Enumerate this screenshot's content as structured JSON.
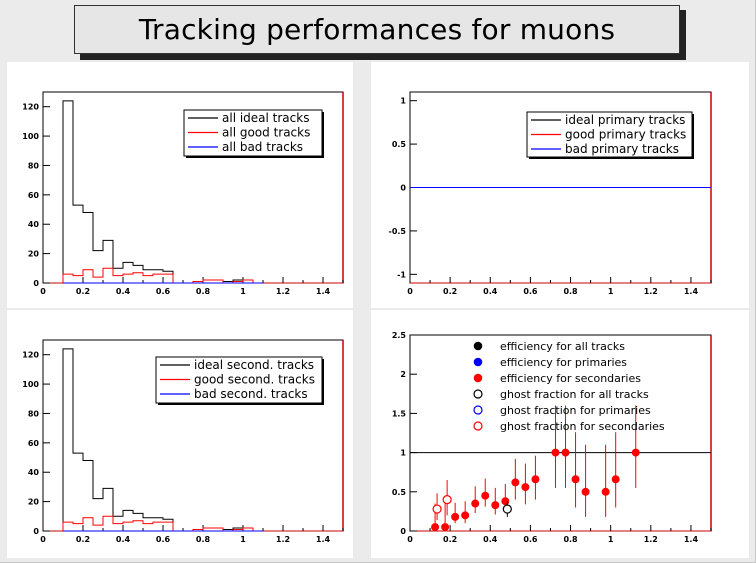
{
  "title": "Tracking performances for muons",
  "chart_data": [
    {
      "type": "histogram",
      "pad": "top-left",
      "xlim": [
        0,
        1.5
      ],
      "ylim": [
        0,
        130
      ],
      "x_ticks": [
        "0",
        "0.2",
        "0.4",
        "0.6",
        "0.8",
        "1",
        "1.2",
        "1.4"
      ],
      "x_tick_values": [
        0,
        0.2,
        0.4,
        0.6,
        0.8,
        1.0,
        1.2,
        1.4
      ],
      "y_ticks": [
        "0",
        "20",
        "40",
        "60",
        "80",
        "100",
        "120"
      ],
      "y_tick_values": [
        0,
        20,
        40,
        60,
        80,
        100,
        120
      ],
      "bin_width": 0.05,
      "bin_starts": [
        0.1,
        0.15,
        0.2,
        0.25,
        0.3,
        0.35,
        0.4,
        0.45,
        0.5,
        0.55,
        0.6,
        0.65,
        0.7,
        0.75,
        0.8,
        0.85,
        0.9,
        0.95,
        1.0,
        1.05
      ],
      "legend_placement": "top-right",
      "series": [
        {
          "name": "all ideal tracks",
          "color": "#000000",
          "values": [
            124,
            53,
            48,
            22,
            29,
            10,
            14,
            12,
            9,
            9,
            8,
            0,
            0,
            1,
            2,
            2,
            1,
            2,
            2,
            0
          ]
        },
        {
          "name": "all good tracks",
          "color": "#ff0000",
          "values": [
            6,
            5,
            9,
            4,
            10,
            5,
            6,
            7,
            5,
            6,
            6,
            0,
            0,
            1,
            2,
            2,
            0,
            1,
            2,
            0
          ]
        },
        {
          "name": "all bad tracks",
          "color": "#0000ff",
          "values": [
            0,
            0,
            0,
            0,
            0,
            0,
            0,
            0,
            0,
            0,
            0,
            0,
            0,
            0,
            0,
            0,
            0,
            0,
            0,
            0
          ]
        }
      ]
    },
    {
      "type": "line",
      "pad": "top-right",
      "xlim": [
        0,
        1.5
      ],
      "ylim": [
        -1.1,
        1.1
      ],
      "x_ticks": [
        "0",
        "0.2",
        "0.4",
        "0.6",
        "0.8",
        "1",
        "1.2",
        "1.4"
      ],
      "x_tick_values": [
        0,
        0.2,
        0.4,
        0.6,
        0.8,
        1.0,
        1.2,
        1.4
      ],
      "y_ticks": [
        "-1",
        "-0.5",
        "0",
        "0.5",
        "1"
      ],
      "y_tick_values": [
        -1,
        -0.5,
        0,
        0.5,
        1
      ],
      "legend_placement": "top-right",
      "series": [
        {
          "name": "ideal primary tracks",
          "color": "#000000",
          "x": [
            0,
            1.5
          ],
          "y": [
            0,
            0
          ]
        },
        {
          "name": "good primary tracks",
          "color": "#ff0000",
          "x": [
            0,
            1.5
          ],
          "y": [
            0,
            0
          ]
        },
        {
          "name": "bad primary tracks",
          "color": "#0000ff",
          "x": [
            0,
            1.5
          ],
          "y": [
            0,
            0
          ]
        }
      ]
    },
    {
      "type": "histogram",
      "pad": "bottom-left",
      "xlim": [
        0,
        1.5
      ],
      "ylim": [
        0,
        130
      ],
      "x_ticks": [
        "0",
        "0.2",
        "0.4",
        "0.6",
        "0.8",
        "1",
        "1.2",
        "1.4"
      ],
      "x_tick_values": [
        0,
        0.2,
        0.4,
        0.6,
        0.8,
        1.0,
        1.2,
        1.4
      ],
      "y_ticks": [
        "0",
        "20",
        "40",
        "60",
        "80",
        "100",
        "120"
      ],
      "y_tick_values": [
        0,
        20,
        40,
        60,
        80,
        100,
        120
      ],
      "bin_width": 0.05,
      "bin_starts": [
        0.1,
        0.15,
        0.2,
        0.25,
        0.3,
        0.35,
        0.4,
        0.45,
        0.5,
        0.55,
        0.6,
        0.65,
        0.7,
        0.75,
        0.8,
        0.85,
        0.9,
        0.95,
        1.0,
        1.05
      ],
      "legend_placement": "top-right",
      "series": [
        {
          "name": "ideal second. tracks",
          "color": "#000000",
          "values": [
            124,
            53,
            48,
            22,
            29,
            10,
            14,
            12,
            9,
            9,
            8,
            0,
            0,
            1,
            2,
            2,
            1,
            2,
            2,
            0
          ]
        },
        {
          "name": "good second. tracks",
          "color": "#ff0000",
          "values": [
            6,
            5,
            9,
            4,
            10,
            5,
            6,
            7,
            5,
            6,
            6,
            0,
            0,
            1,
            2,
            2,
            0,
            1,
            2,
            0
          ]
        },
        {
          "name": "bad second. tracks",
          "color": "#0000ff",
          "values": [
            0,
            0,
            0,
            0,
            0,
            0,
            0,
            0,
            0,
            0,
            0,
            0,
            0,
            0,
            0,
            0,
            0,
            0,
            0,
            0
          ]
        }
      ]
    },
    {
      "type": "scatter",
      "pad": "bottom-right",
      "xlim": [
        0,
        1.5
      ],
      "ylim": [
        0,
        2.5
      ],
      "x_ticks": [
        "0",
        "0.2",
        "0.4",
        "0.6",
        "0.8",
        "1",
        "1.2",
        "1.4"
      ],
      "x_tick_values": [
        0,
        0.2,
        0.4,
        0.6,
        0.8,
        1.0,
        1.2,
        1.4
      ],
      "y_ticks": [
        "0",
        "0.5",
        "1",
        "1.5",
        "2",
        "2.5"
      ],
      "y_tick_values": [
        0,
        0.5,
        1,
        1.5,
        2,
        2.5
      ],
      "reference_line_y": 1,
      "legend_placement": "top-right",
      "legend": [
        {
          "name": "efficiency for all tracks",
          "color": "#000000",
          "marker": "filled"
        },
        {
          "name": "efficiency for primaries",
          "color": "#0000ff",
          "marker": "filled"
        },
        {
          "name": "efficiency for secondaries",
          "color": "#ff0000",
          "marker": "filled"
        },
        {
          "name": "ghost fraction for all tracks",
          "color": "#000000",
          "marker": "open"
        },
        {
          "name": "ghost fraction for primaries",
          "color": "#0000ff",
          "marker": "open"
        },
        {
          "name": "ghost fraction for secondaries",
          "color": "#ff0000",
          "marker": "open"
        }
      ],
      "series": [
        {
          "name": "efficiency for secondaries",
          "color": "#ff0000",
          "marker": "filled",
          "x": [
            0.125,
            0.175,
            0.225,
            0.275,
            0.325,
            0.375,
            0.425,
            0.475,
            0.525,
            0.575,
            0.625,
            0.725,
            0.775,
            0.825,
            0.875,
            0.975,
            1.025,
            1.125
          ],
          "y": [
            0.05,
            0.05,
            0.18,
            0.2,
            0.35,
            0.45,
            0.33,
            0.38,
            0.62,
            0.56,
            0.66,
            1.0,
            1.0,
            0.66,
            0.5,
            0.5,
            0.66,
            1.0
          ],
          "err_low": [
            0.04,
            0.04,
            0.08,
            0.1,
            0.12,
            0.14,
            0.12,
            0.14,
            0.22,
            0.22,
            0.26,
            0.45,
            0.45,
            0.36,
            0.32,
            0.32,
            0.36,
            0.45
          ],
          "err_high": [
            0.3,
            0.3,
            0.18,
            0.18,
            0.22,
            0.22,
            0.22,
            0.22,
            0.3,
            0.3,
            0.3,
            0.6,
            0.6,
            0.6,
            0.6,
            0.6,
            0.6,
            0.6
          ]
        },
        {
          "name": "ghost fraction for secondaries",
          "color": "#ff0000",
          "marker": "open",
          "x": [
            0.135,
            0.185
          ],
          "y": [
            0.28,
            0.4
          ],
          "err_low": [
            0.14,
            0.2
          ],
          "err_high": [
            0.2,
            0.25
          ]
        },
        {
          "name": "ghost fraction for all tracks",
          "color": "#000000",
          "marker": "open",
          "x": [
            0.485
          ],
          "y": [
            0.28
          ],
          "err_low": [
            0.1
          ],
          "err_high": [
            0.1
          ]
        }
      ]
    }
  ]
}
